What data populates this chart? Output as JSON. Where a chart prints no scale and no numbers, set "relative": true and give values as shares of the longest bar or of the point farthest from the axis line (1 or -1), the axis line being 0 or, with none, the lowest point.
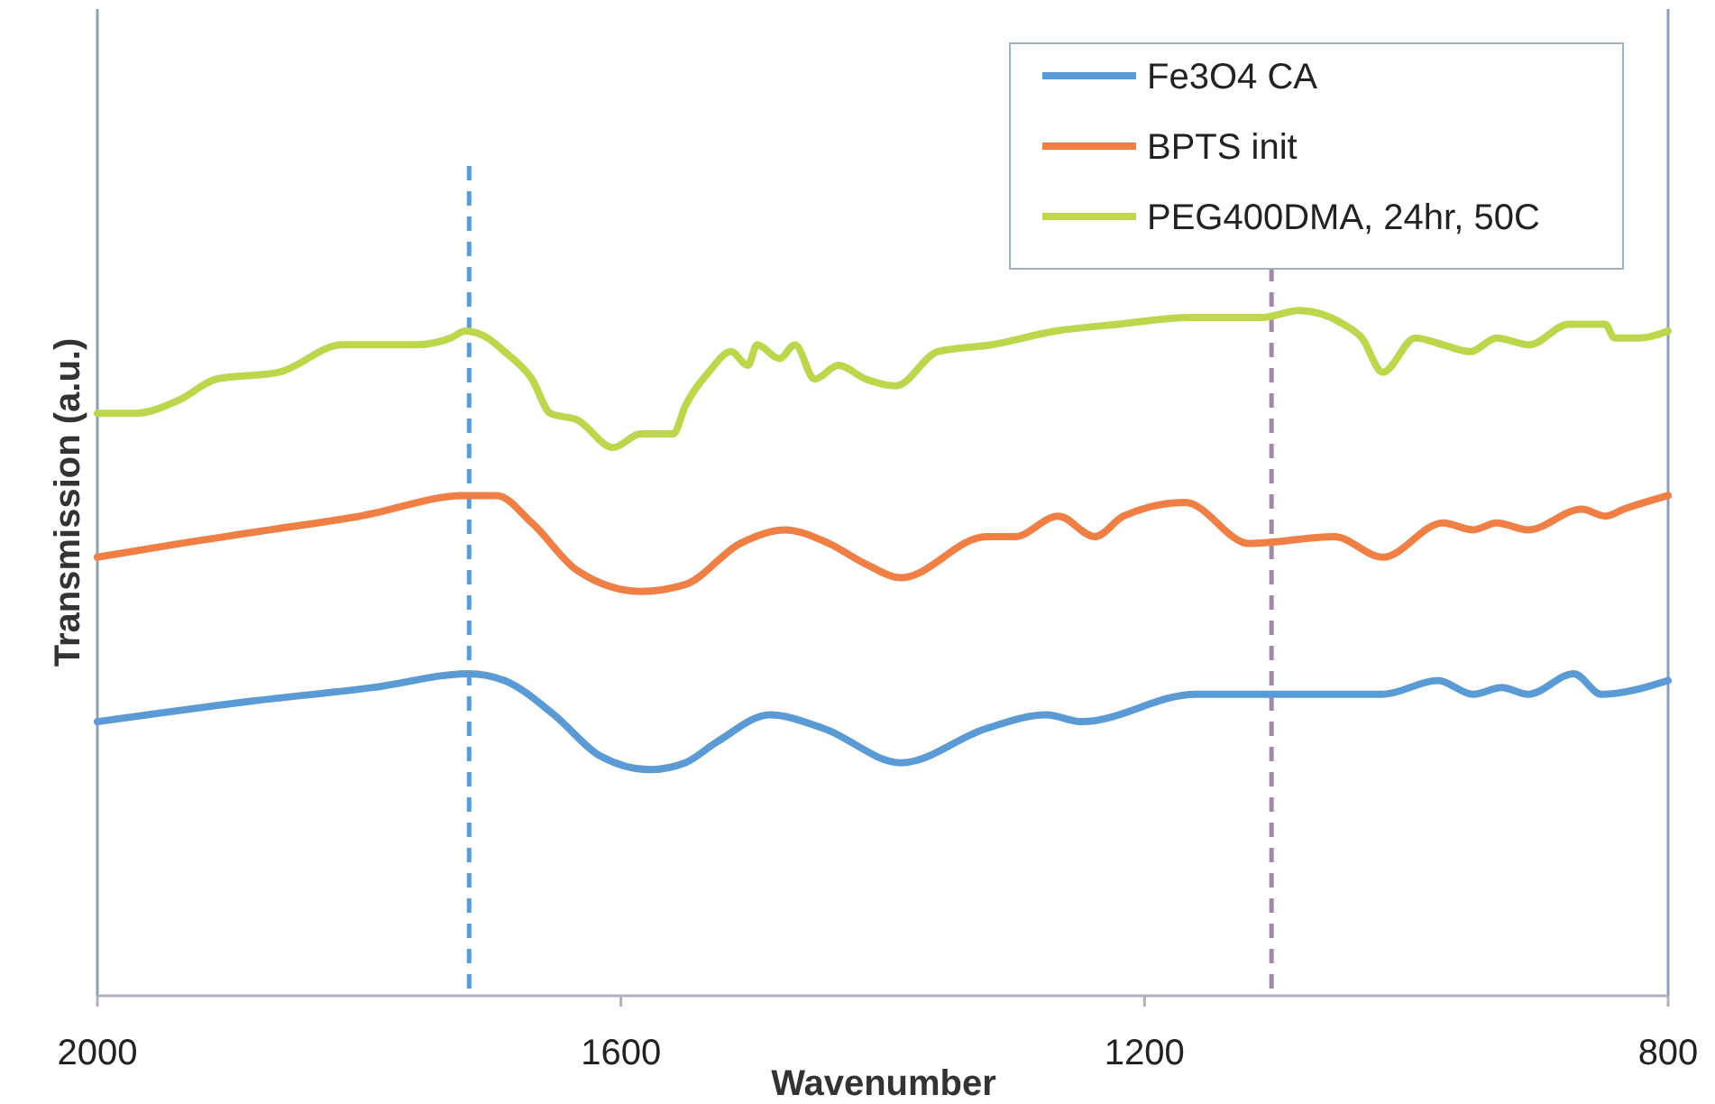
{
  "chart_data": {
    "type": "line",
    "xlabel": "Wavenumber",
    "ylabel": "Transmission (a.u.)",
    "relative": true,
    "xlim": [
      2000,
      800
    ],
    "xticks": [
      2000,
      1600,
      1200,
      800
    ],
    "grid": false,
    "legend": "top right",
    "marker": "none",
    "line_style": "solid",
    "series": [
      {
        "name": "Fe3O4 CA",
        "color": "#5b9bd5",
        "x": [
          2000,
          1882,
          1789,
          1716,
          1689,
          1651,
          1616,
          1578,
          1551,
          1527,
          1486,
          1445,
          1386,
          1321,
          1275,
          1248,
          1161,
          1092,
          1018,
          976,
          949,
          927,
          907,
          872,
          851,
          800
        ],
        "values": [
          0.4,
          0.43,
          0.45,
          0.47,
          0.46,
          0.41,
          0.35,
          0.33,
          0.34,
          0.37,
          0.41,
          0.39,
          0.34,
          0.39,
          0.41,
          0.4,
          0.44,
          0.44,
          0.44,
          0.46,
          0.44,
          0.45,
          0.44,
          0.47,
          0.44,
          0.46
        ]
      },
      {
        "name": "BPTS init",
        "color": "#f07f45",
        "x": [
          2000,
          1937,
          1868,
          1799,
          1719,
          1695,
          1668,
          1633,
          1585,
          1551,
          1509,
          1475,
          1441,
          1413,
          1386,
          1321,
          1299,
          1266,
          1238,
          1216,
          1169,
          1120,
          1055,
          1018,
          972,
          949,
          931,
          907,
          866,
          848,
          834,
          800
        ],
        "values": [
          0.64,
          0.66,
          0.68,
          0.7,
          0.73,
          0.73,
          0.69,
          0.62,
          0.59,
          0.6,
          0.66,
          0.68,
          0.66,
          0.63,
          0.61,
          0.67,
          0.67,
          0.7,
          0.67,
          0.7,
          0.72,
          0.66,
          0.67,
          0.64,
          0.69,
          0.68,
          0.69,
          0.68,
          0.71,
          0.7,
          0.71,
          0.73
        ]
      },
      {
        "name": "PEG400DMA, 24hr, 50C",
        "color": "#bcd74c",
        "x": [
          2000,
          1971,
          1937,
          1909,
          1861,
          1813,
          1757,
          1730,
          1719,
          1702,
          1689,
          1668,
          1654,
          1633,
          1606,
          1585,
          1560,
          1551,
          1533,
          1516,
          1503,
          1496,
          1479,
          1467,
          1452,
          1434,
          1413,
          1390,
          1358,
          1317,
          1268,
          1220,
          1165,
          1137,
          1110,
          1082,
          1048,
          1034,
          1018,
          993,
          972,
          951,
          931,
          906,
          876,
          848,
          841,
          821,
          800
        ],
        "values": [
          0.85,
          0.85,
          0.87,
          0.9,
          0.91,
          0.95,
          0.95,
          0.96,
          0.97,
          0.96,
          0.94,
          0.9,
          0.85,
          0.84,
          0.8,
          0.82,
          0.82,
          0.86,
          0.91,
          0.94,
          0.92,
          0.95,
          0.93,
          0.95,
          0.9,
          0.92,
          0.9,
          0.89,
          0.94,
          0.95,
          0.97,
          0.98,
          0.99,
          0.99,
          0.99,
          1.0,
          0.98,
          0.96,
          0.91,
          0.96,
          0.95,
          0.94,
          0.96,
          0.95,
          0.98,
          0.98,
          0.96,
          0.96,
          0.97
        ]
      }
    ],
    "ref_lines": [
      {
        "axis": "x",
        "value": 1716,
        "color": "#5b9bd5",
        "line_style": "dashed"
      },
      {
        "axis": "x",
        "value": 1103,
        "color": "#a08aa8",
        "line_style": "dashed"
      }
    ]
  }
}
